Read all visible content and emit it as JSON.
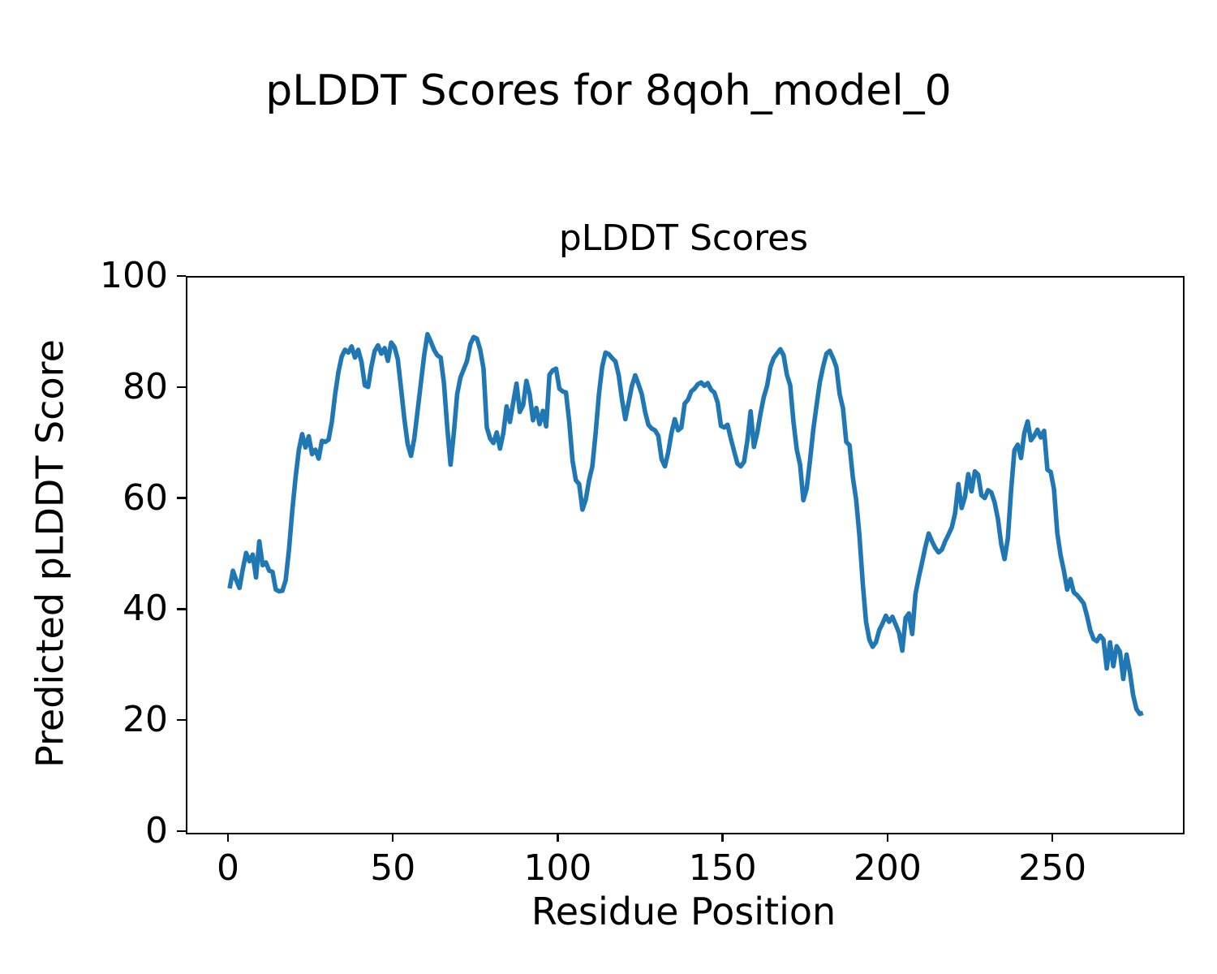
{
  "figure": {
    "suptitle": "pLDDT Scores for 8qoh_model_0",
    "background_color": "#ffffff",
    "text_color": "#000000"
  },
  "chart_data": {
    "type": "line",
    "title": "pLDDT Scores",
    "xlabel": "Residue Position",
    "ylabel": "Predicted pLDDT Score",
    "xlim": [
      -12.8,
      289.1
    ],
    "ylim": [
      0,
      100
    ],
    "xticks": [
      0,
      50,
      100,
      150,
      200,
      250
    ],
    "yticks": [
      0,
      20,
      40,
      60,
      80,
      100
    ],
    "grid": false,
    "legend_position": "none",
    "line_color": "#1f77b4",
    "line_width": 5.6,
    "series": [
      {
        "name": "pLDDT",
        "x_start": 0,
        "x_step": 1,
        "values": [
          44,
          47.2,
          45.5,
          44.1,
          47.5,
          50.4,
          48.9,
          50.1,
          46,
          52.5,
          48.2,
          48.7,
          47.2,
          47,
          43.8,
          43.5,
          43.6,
          45.5,
          51,
          58,
          64,
          69,
          71.8,
          69.4,
          71.4,
          68.2,
          69,
          67.4,
          70.6,
          70.4,
          70.8,
          74,
          79,
          83,
          85.8,
          87,
          86.5,
          87.6,
          85.6,
          87,
          84.8,
          80.6,
          80.3,
          84,
          86.8,
          87.8,
          86.3,
          87.3,
          85,
          88.3,
          87.5,
          85.3,
          80,
          74.5,
          70,
          67.9,
          71,
          76,
          81,
          86,
          89.8,
          88.5,
          87,
          86,
          85.6,
          81,
          73,
          66.3,
          72,
          79,
          82,
          83.5,
          85,
          88,
          89.3,
          89,
          87,
          83.6,
          73,
          71,
          70.2,
          72.1,
          69.2,
          72,
          76.8,
          74,
          77.5,
          80.9,
          75.8,
          77,
          81.4,
          79,
          74.3,
          76.5,
          73.6,
          76,
          73.2,
          82.5,
          83.3,
          83.6,
          80,
          79.5,
          79.3,
          74,
          67,
          63.5,
          62.8,
          58.2,
          60,
          63.5,
          66,
          72,
          79,
          84,
          86.5,
          86.2,
          85.5,
          84.9,
          82.4,
          78,
          74.5,
          77.5,
          80.5,
          82.4,
          80.8,
          79,
          75.8,
          73.5,
          72.8,
          72.5,
          71.5,
          67.3,
          66,
          68.5,
          72,
          74.5,
          72.5,
          73,
          77.3,
          78,
          79.5,
          80,
          80.8,
          81.1,
          80.5,
          81,
          79.8,
          79.3,
          77.5,
          73.3,
          73,
          73.5,
          71,
          68.7,
          66.5,
          66,
          66.8,
          70.6,
          75.9,
          69.5,
          72,
          75.5,
          78.5,
          80.5,
          83.9,
          85.5,
          86.3,
          87.1,
          86,
          82.5,
          80.6,
          74,
          69,
          66.3,
          59.9,
          62,
          67,
          72.6,
          77,
          81.2,
          84,
          86.3,
          86.8,
          85.5,
          83.9,
          79,
          76.5,
          70.4,
          69.8,
          64,
          60,
          53.5,
          45,
          38,
          34.8,
          33.5,
          34.3,
          36.5,
          37.7,
          39.1,
          38,
          38.9,
          37.5,
          36,
          32.8,
          38.7,
          39.5,
          35.8,
          43,
          46,
          48.7,
          51.5,
          53.9,
          52.5,
          51.3,
          50.5,
          51,
          52.5,
          53.7,
          55,
          57.5,
          62.8,
          58.5,
          60.5,
          64.6,
          61.5,
          65.1,
          64.5,
          60.8,
          60.3,
          61.7,
          61.3,
          59.5,
          56.5,
          52,
          49.3,
          53,
          61.7,
          68.9,
          69.9,
          67.5,
          72,
          74.1,
          70.7,
          71.5,
          72.6,
          71.2,
          72.4,
          65.4,
          65,
          61.9,
          54,
          50,
          47.2,
          43.8,
          45.7,
          43.3,
          42.8,
          42.1,
          41.3,
          39.1,
          36.5,
          34.9,
          34.5,
          35.5,
          34.8,
          29.6,
          34.3,
          30,
          33.6,
          32.6,
          27.7,
          32.1,
          29,
          24.8,
          22.3,
          21.4,
          21.6
        ]
      }
    ]
  }
}
